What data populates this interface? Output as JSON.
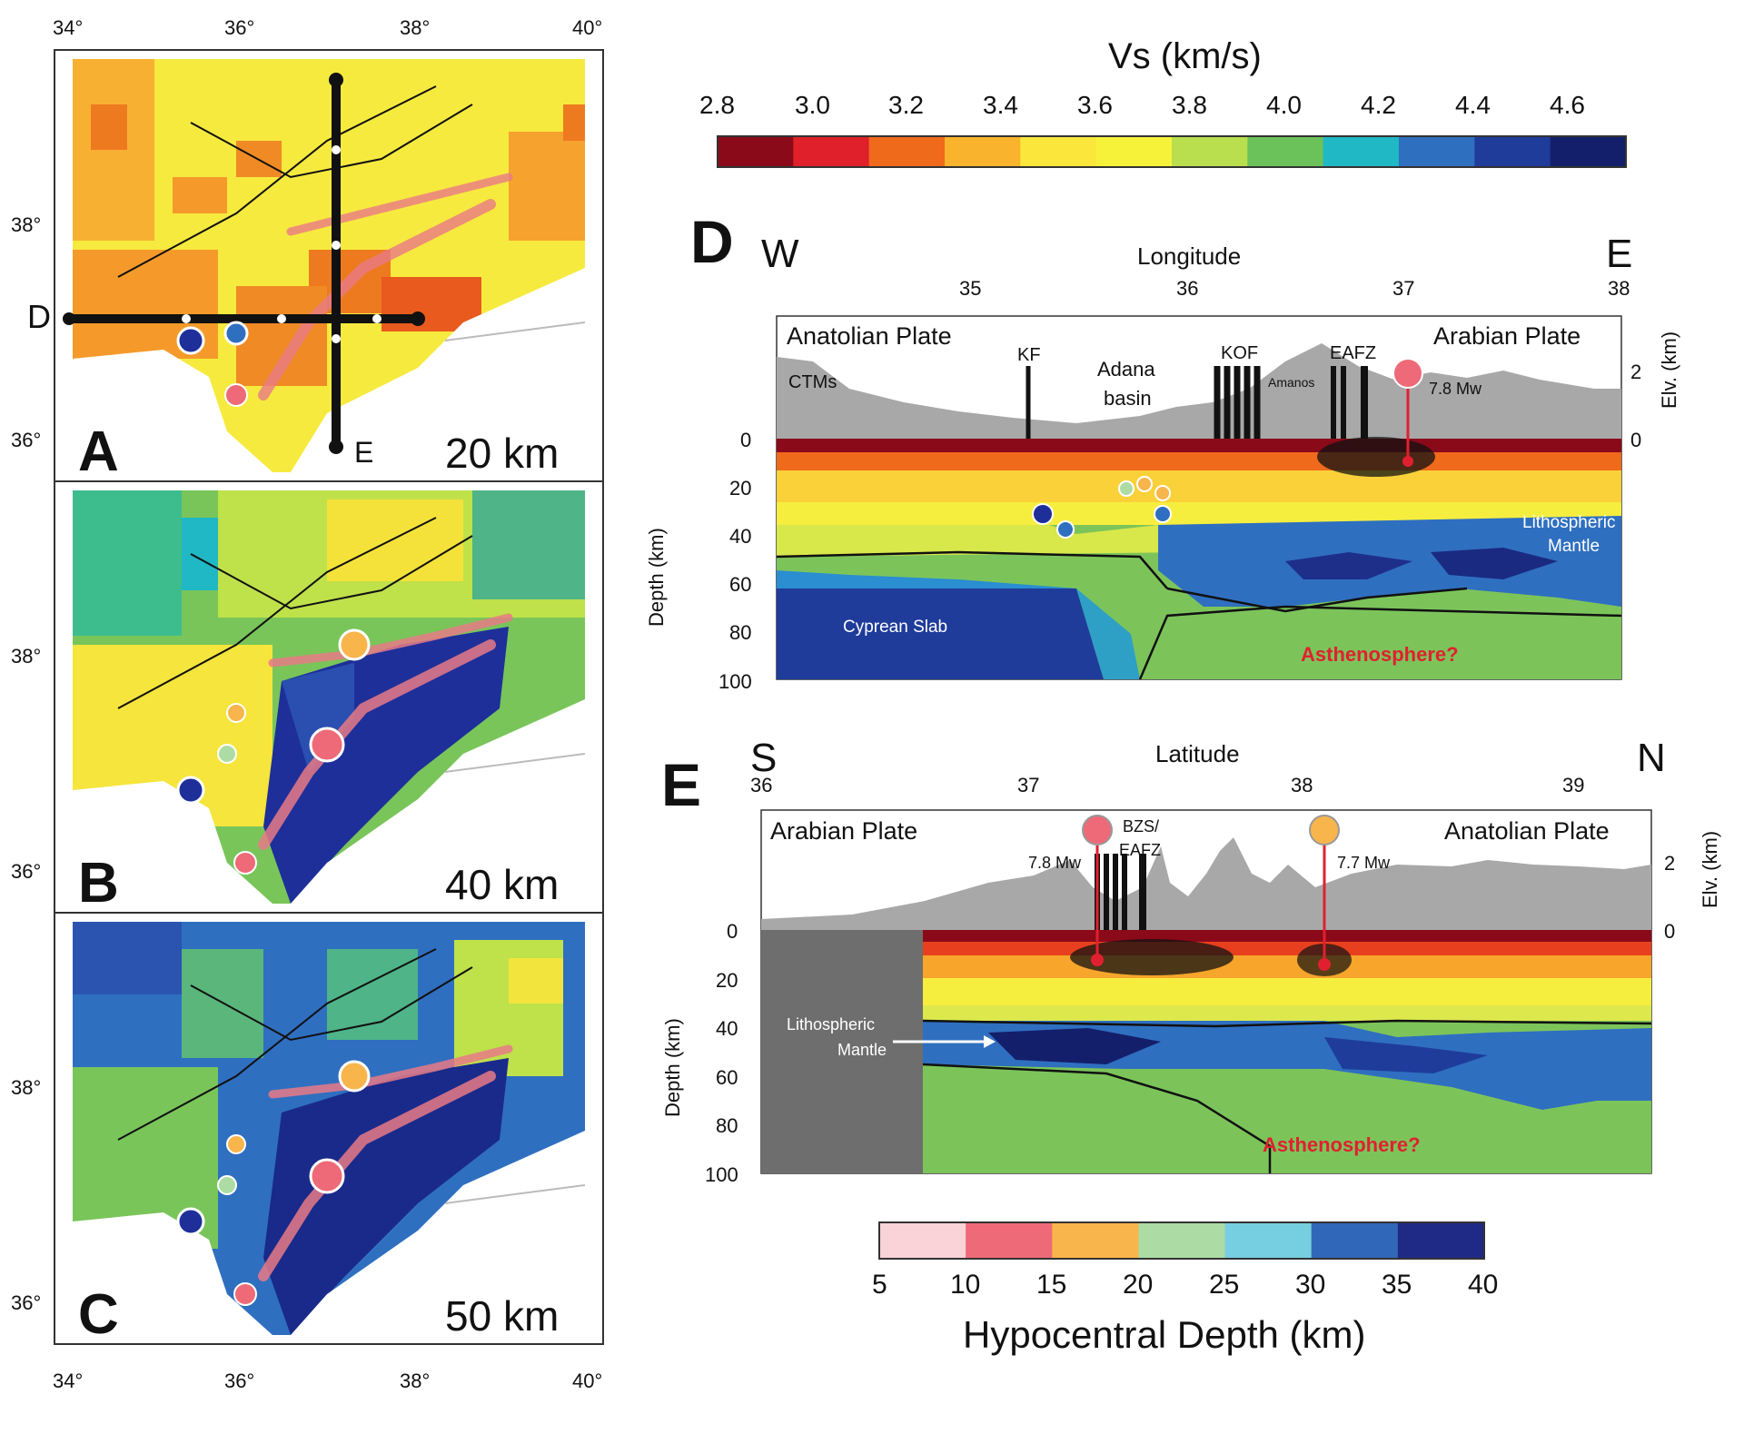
{
  "map_panels": {
    "top_ticks": [
      "34°",
      "36°",
      "38°",
      "40°"
    ],
    "bottom_ticks": [
      "34°",
      "36°",
      "38°",
      "40°"
    ],
    "lat_ticks": [
      "38°",
      "36°"
    ],
    "profile_labels": {
      "d": "D",
      "e": "E"
    },
    "panels": [
      {
        "letter": "A",
        "depth": "20 km"
      },
      {
        "letter": "B",
        "depth": "40 km"
      },
      {
        "letter": "C",
        "depth": "50 km"
      }
    ]
  },
  "vs_colorbar": {
    "title": "Vs (km/s)",
    "ticks": [
      "2.8",
      "3.0",
      "3.2",
      "3.4",
      "3.6",
      "3.8",
      "4.0",
      "4.2",
      "4.4",
      "4.6"
    ],
    "colors": [
      "#8b0a1a",
      "#e0202a",
      "#f06a1c",
      "#f9b32c",
      "#fbe63c",
      "#f6f239",
      "#b9df4e",
      "#6cc25a",
      "#1fb8c4",
      "#2f6fc0",
      "#1f3c9b",
      "#141f6b"
    ]
  },
  "section_d": {
    "letter": "D",
    "left_dir": "W",
    "right_dir": "E",
    "axis_title": "Longitude",
    "x_ticks": [
      "35",
      "36",
      "37",
      "38"
    ],
    "y_ticks": [
      "0",
      "20",
      "40",
      "60",
      "80",
      "100"
    ],
    "elv_ticks": [
      "2",
      "0"
    ],
    "y_label": "Depth (km)",
    "elv_label": "Elv. (km)",
    "left_plate": "Anatolian Plate",
    "right_plate": "Arabian Plate",
    "labels": {
      "ctms": "CTMs",
      "kf": "KF",
      "adana1": "Adana",
      "adana2": "basin",
      "kof": "KOF",
      "amanos": "Amanos",
      "eafz": "EAFZ",
      "mw": "7.8 Mw",
      "litho1": "Lithospheric",
      "litho2": "Mantle",
      "slab": "Cyprean Slab",
      "astheno": "Asthenosphere?"
    }
  },
  "section_e": {
    "letter": "E",
    "left_dir": "S",
    "right_dir": "N",
    "axis_title": "Latitude",
    "x_ticks": [
      "36",
      "37",
      "38",
      "39"
    ],
    "y_ticks": [
      "0",
      "20",
      "40",
      "60",
      "80",
      "100"
    ],
    "elv_ticks": [
      "2",
      "0"
    ],
    "y_label": "Depth (km)",
    "elv_label": "Elv. (km)",
    "left_plate": "Arabian Plate",
    "right_plate": "Anatolian Plate",
    "labels": {
      "mw1": "7.8 Mw",
      "bzs1": "BZS/",
      "bzs2": "EAFZ",
      "mw2": "7.7 Mw",
      "litho1": "Lithospheric",
      "litho2": "Mantle",
      "astheno": "Asthenosphere?"
    }
  },
  "depth_colorbar": {
    "title": "Hypocentral Depth (km)",
    "ticks": [
      "5",
      "10",
      "15",
      "20",
      "25",
      "30",
      "35",
      "40"
    ],
    "colors": [
      "#fad3d8",
      "#ee6a78",
      "#f8b54c",
      "#acdca4",
      "#75cfe0",
      "#3167b8",
      "#1e2a85"
    ]
  }
}
